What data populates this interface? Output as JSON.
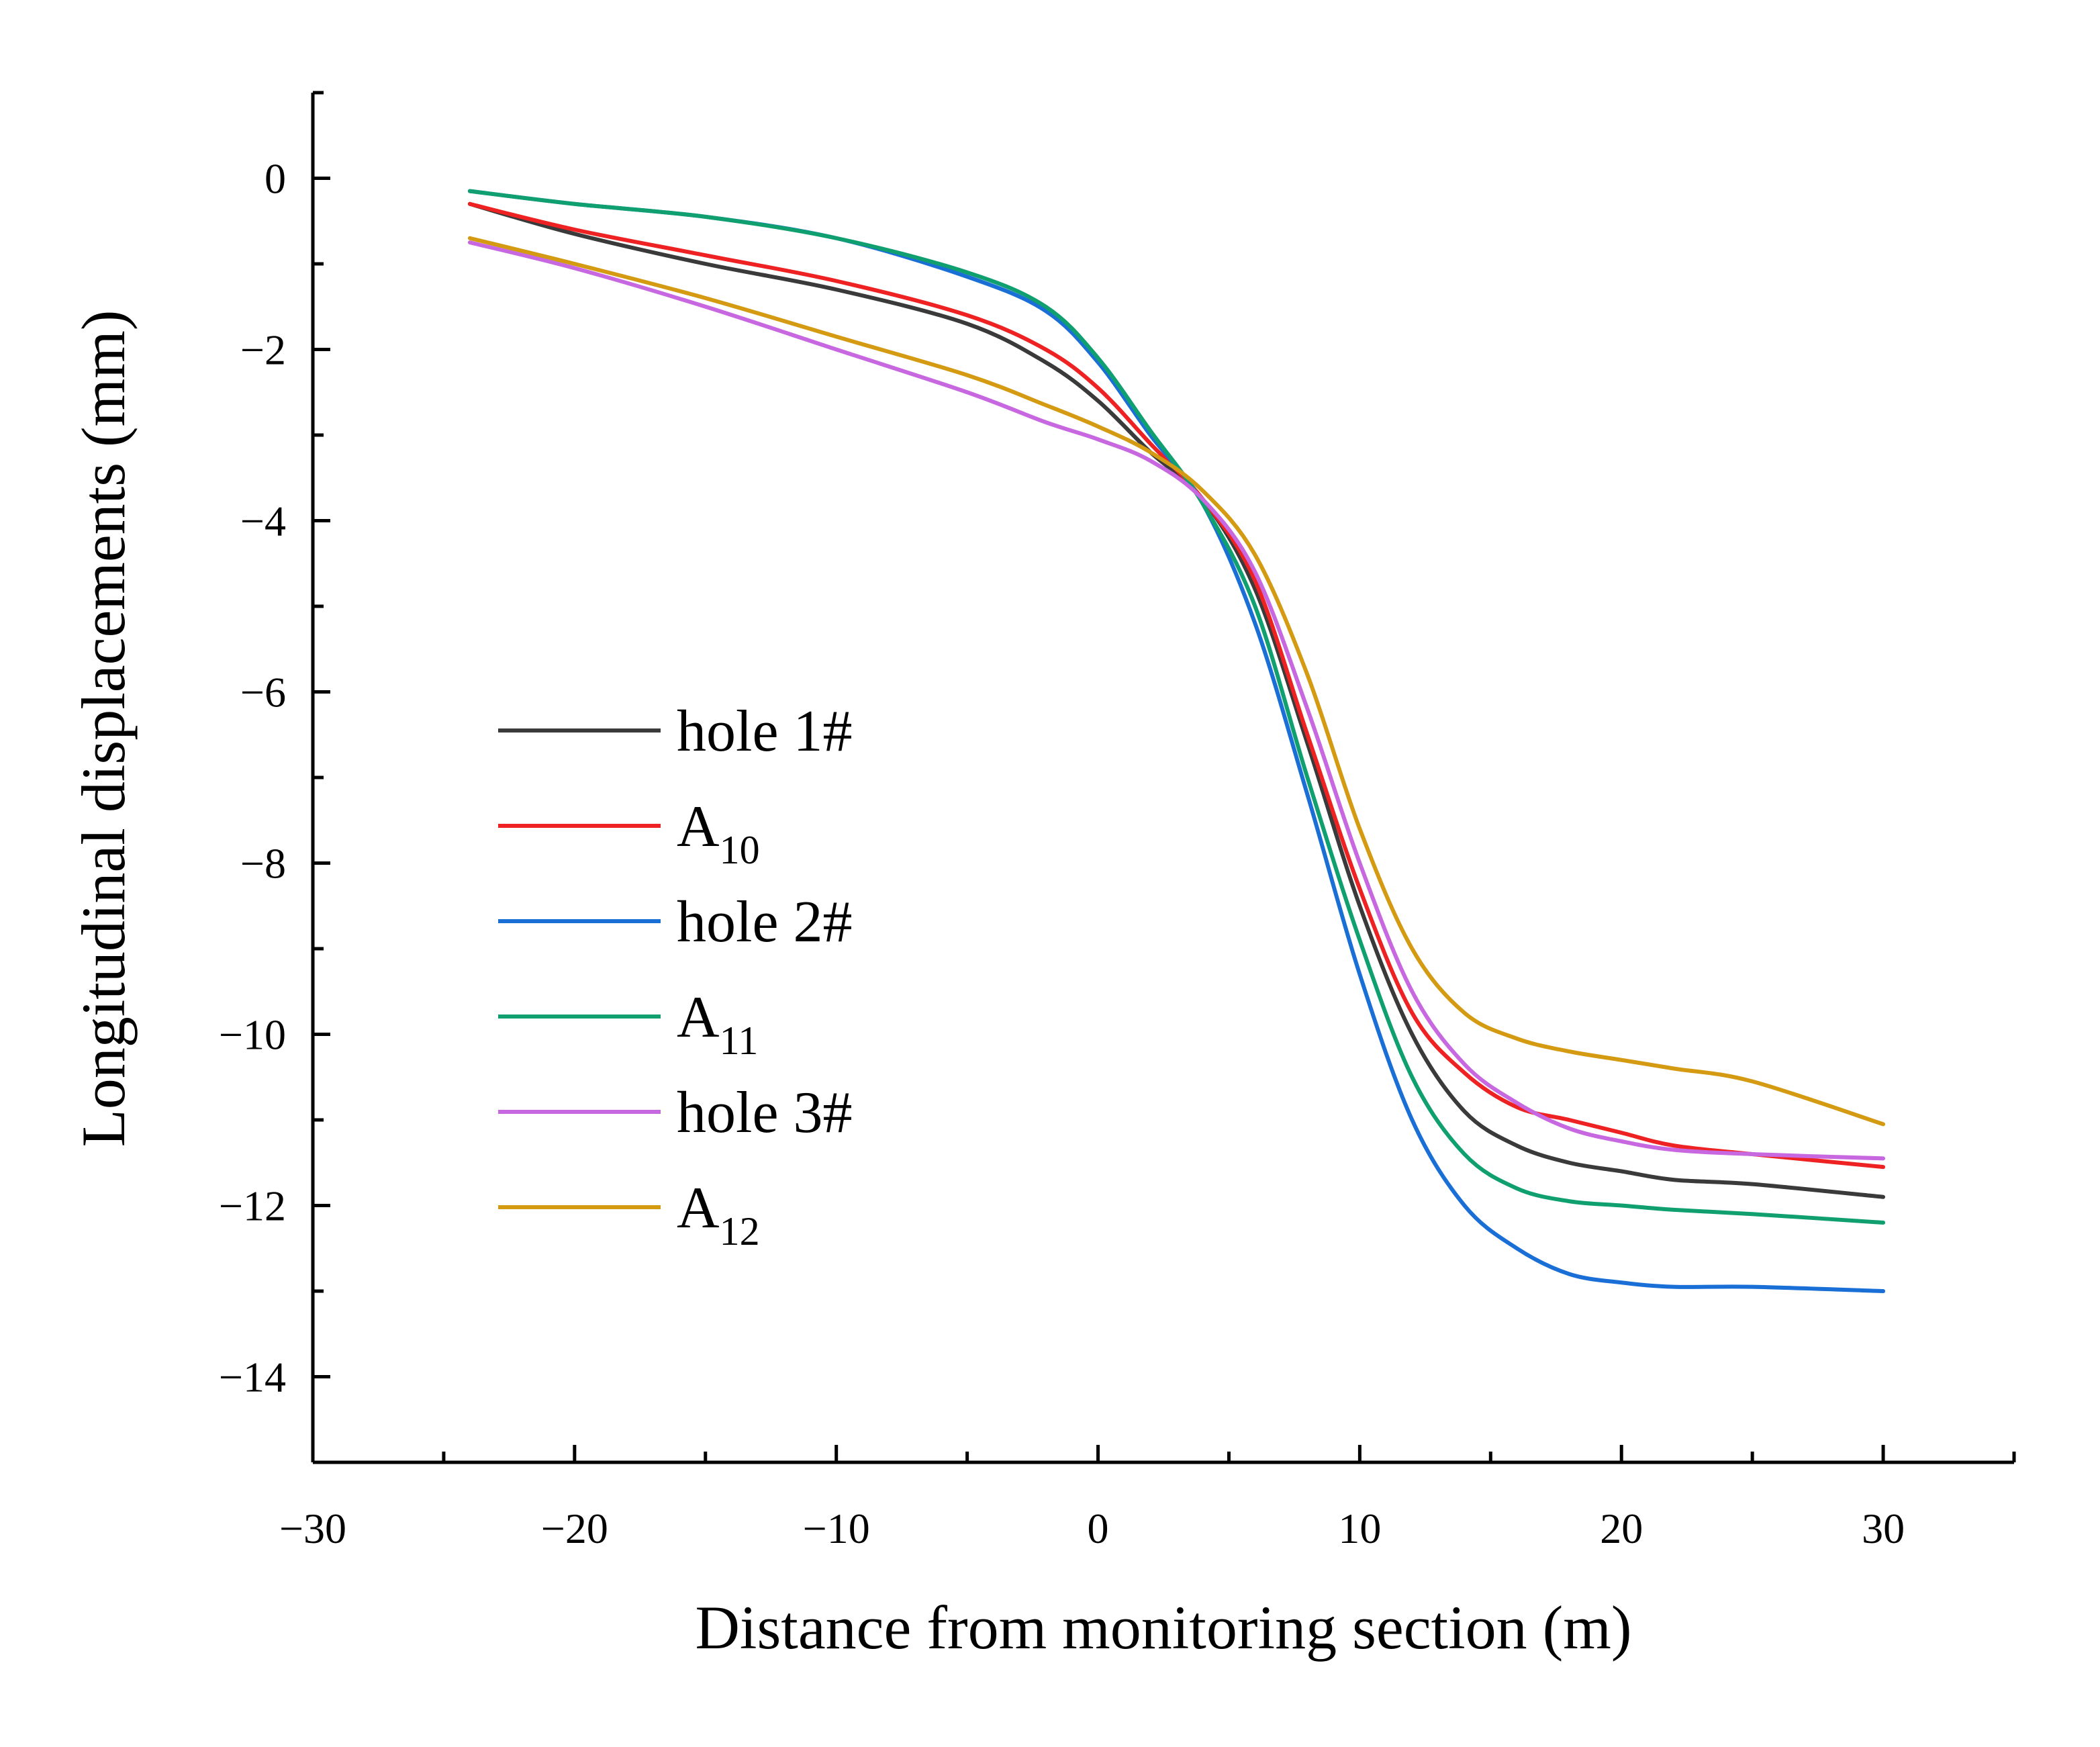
{
  "chart_data": {
    "type": "line",
    "title": "",
    "xlabel": "Distance from monitoring section (m)",
    "ylabel": "Longitudinal displacements (mm)",
    "xlim": [
      -30,
      35
    ],
    "ylim": [
      -15,
      1
    ],
    "x_ticks": [
      -30,
      -20,
      -10,
      0,
      10,
      20,
      30
    ],
    "x_tick_labels": [
      "−30",
      "−20",
      "−10",
      "0",
      "10",
      "20",
      "30"
    ],
    "y_ticks": [
      0,
      -2,
      -4,
      -6,
      -8,
      -10,
      -12,
      -14
    ],
    "y_tick_labels": [
      "0",
      "−2",
      "−4",
      "−6",
      "−8",
      "−10",
      "−12",
      "−14"
    ],
    "legend_position": "center-left",
    "series": [
      {
        "name": "hole 1#",
        "base": "hole 1#",
        "sub": "",
        "color": "#3a3a3a",
        "x": [
          -24,
          -20,
          -15,
          -10,
          -5,
          -2,
          0,
          2,
          4,
          6,
          8,
          10,
          12,
          14,
          16,
          18,
          20,
          22,
          25,
          30
        ],
        "y": [
          -0.3,
          -0.65,
          -1.0,
          -1.3,
          -1.7,
          -2.15,
          -2.6,
          -3.2,
          -3.75,
          -4.8,
          -6.6,
          -8.5,
          -10.0,
          -10.9,
          -11.3,
          -11.5,
          -11.6,
          -11.7,
          -11.75,
          -11.9
        ]
      },
      {
        "name": "A10",
        "base": "A",
        "sub": "10",
        "color": "#ee2222",
        "x": [
          -24,
          -20,
          -15,
          -10,
          -5,
          -2,
          0,
          2,
          4,
          6,
          8,
          10,
          12,
          14,
          16,
          18,
          20,
          22,
          25,
          30
        ],
        "y": [
          -0.3,
          -0.6,
          -0.9,
          -1.2,
          -1.6,
          -2.0,
          -2.45,
          -3.1,
          -3.75,
          -4.7,
          -6.5,
          -8.3,
          -9.75,
          -10.45,
          -10.85,
          -11.0,
          -11.15,
          -11.3,
          -11.4,
          -11.55
        ]
      },
      {
        "name": "hole 2#",
        "base": "hole 2#",
        "sub": "",
        "color": "#1a6fd6",
        "x": [
          -24,
          -20,
          -15,
          -10,
          -5,
          -2,
          0,
          2,
          4,
          6,
          8,
          10,
          12,
          14,
          16,
          18,
          20,
          22,
          25,
          30
        ],
        "y": [
          -0.15,
          -0.3,
          -0.45,
          -0.7,
          -1.15,
          -1.55,
          -2.15,
          -3.0,
          -3.8,
          -5.2,
          -7.2,
          -9.3,
          -11.0,
          -12.0,
          -12.5,
          -12.8,
          -12.9,
          -12.95,
          -12.95,
          -13.0
        ]
      },
      {
        "name": "A11",
        "base": "A",
        "sub": "11",
        "color": "#10a070",
        "x": [
          -24,
          -20,
          -15,
          -10,
          -5,
          -2,
          0,
          2,
          4,
          6,
          8,
          10,
          12,
          14,
          16,
          18,
          20,
          22,
          25,
          30
        ],
        "y": [
          -0.15,
          -0.3,
          -0.45,
          -0.7,
          -1.1,
          -1.5,
          -2.1,
          -2.95,
          -3.8,
          -5.0,
          -7.0,
          -8.9,
          -10.5,
          -11.4,
          -11.8,
          -11.95,
          -12.0,
          -12.05,
          -12.1,
          -12.2
        ]
      },
      {
        "name": "hole 3#",
        "base": "hole 3#",
        "sub": "",
        "color": "#c868e0",
        "x": [
          -24,
          -20,
          -15,
          -10,
          -5,
          -2,
          0,
          2,
          4,
          6,
          8,
          10,
          12,
          14,
          16,
          18,
          20,
          22,
          25,
          30
        ],
        "y": [
          -0.75,
          -1.05,
          -1.5,
          -2.0,
          -2.5,
          -2.85,
          -3.05,
          -3.3,
          -3.75,
          -4.6,
          -6.2,
          -8.0,
          -9.5,
          -10.35,
          -10.8,
          -11.1,
          -11.25,
          -11.35,
          -11.4,
          -11.45
        ]
      },
      {
        "name": "A12",
        "base": "A",
        "sub": "12",
        "color": "#d49a12",
        "x": [
          -24,
          -20,
          -15,
          -10,
          -5,
          -2,
          0,
          2,
          4,
          6,
          8,
          10,
          12,
          14,
          16,
          18,
          20,
          22,
          25,
          30
        ],
        "y": [
          -0.7,
          -1.0,
          -1.4,
          -1.85,
          -2.3,
          -2.65,
          -2.9,
          -3.2,
          -3.65,
          -4.4,
          -5.8,
          -7.6,
          -9.0,
          -9.75,
          -10.05,
          -10.2,
          -10.3,
          -10.4,
          -10.55,
          -11.05
        ]
      }
    ]
  }
}
